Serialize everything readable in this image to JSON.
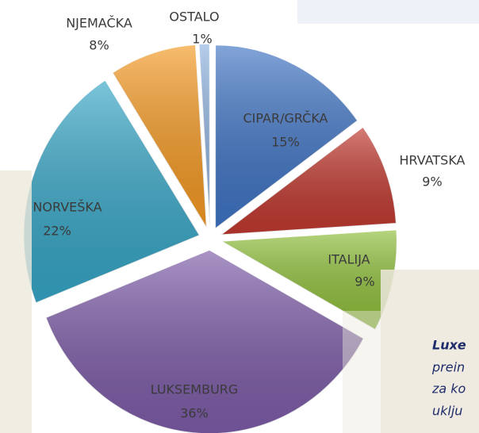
{
  "chart_data": {
    "type": "pie",
    "categories": [
      "CIPAR/GRČKA",
      "HRVATSKA",
      "ITALIJA",
      "LUKSEMBURG",
      "NORVEŠKA",
      "NJEMAČKA",
      "OSTALO"
    ],
    "values": [
      15,
      9,
      9,
      36,
      22,
      8,
      1
    ],
    "value_labels": [
      "15%",
      "9%",
      "9%",
      "36%",
      "22%",
      "8%",
      "1%"
    ],
    "colors": [
      "#3f74c4",
      "#c0392f",
      "#8fbf3a",
      "#7d5ca8",
      "#36a6c6",
      "#f59a23",
      "#8fb3e0"
    ]
  },
  "notes": [
    "Luxe",
    "prein",
    "za ko",
    "uklju"
  ]
}
